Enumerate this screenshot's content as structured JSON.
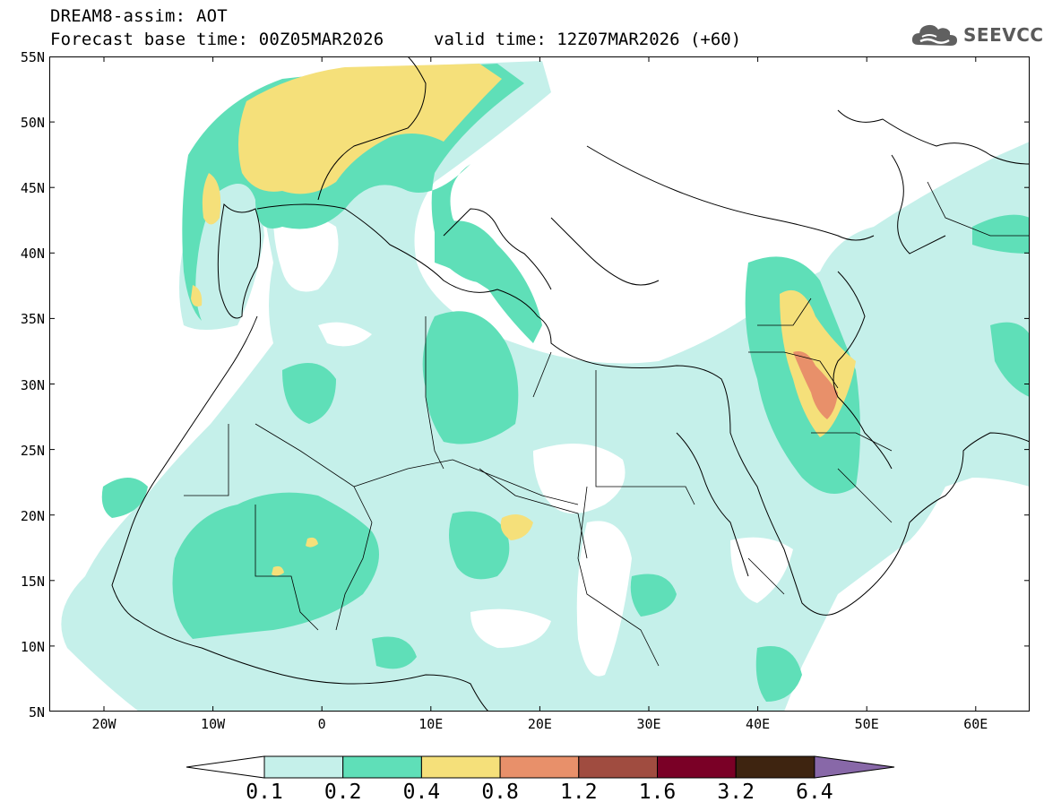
{
  "header": {
    "title_line1": "DREAM8-assim: AOT",
    "title_line2": "Forecast base time: 00Z05MAR2026",
    "valid_time": "valid time: 12Z07MAR2026 (+60)"
  },
  "logo": {
    "text": "SEEVCCC",
    "icon": "cloud-icon"
  },
  "axes": {
    "y_labels": [
      "55N",
      "50N",
      "45N",
      "40N",
      "35N",
      "30N",
      "25N",
      "20N",
      "15N",
      "10N",
      "5N"
    ],
    "x_labels": [
      "20W",
      "10W",
      "0",
      "10E",
      "20E",
      "30E",
      "40E",
      "50E",
      "60E"
    ]
  },
  "colorbar": {
    "labels": [
      "0.1",
      "0.2",
      "0.4",
      "0.8",
      "1.2",
      "1.6",
      "3.2",
      "6.4"
    ],
    "colors": [
      "#c5f0ea",
      "#5fdfb8",
      "#f5e07a",
      "#e8906a",
      "#a04c40",
      "#7a0026",
      "#3e2410",
      "#8868a8"
    ]
  }
}
